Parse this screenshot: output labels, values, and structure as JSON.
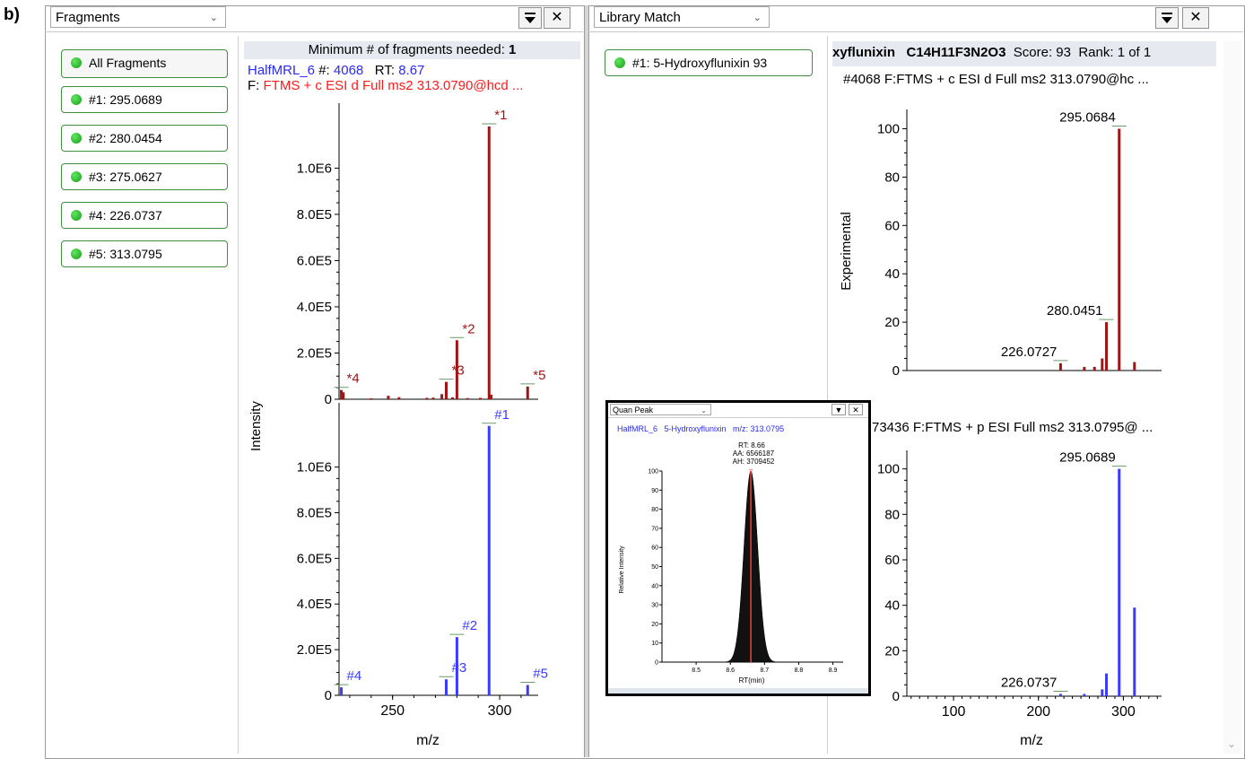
{
  "figure_label": "b)",
  "fragments_panel": {
    "title": "Fragments",
    "items": [
      {
        "label": "All Fragments"
      },
      {
        "label": "#1: 295.0689"
      },
      {
        "label": "#2: 280.0454"
      },
      {
        "label": "#3: 275.0627"
      },
      {
        "label": "#4: 226.0737"
      },
      {
        "label": "#5: 313.0795"
      }
    ]
  },
  "spectrum_panel": {
    "min_fragments_label": "Minimum # of fragments needed:",
    "min_fragments_value": "1",
    "file": "HalfMRL_6",
    "scan_label": "#:",
    "scan_value": "4068",
    "rt_label": "RT:",
    "rt_value": "8.67",
    "filter_label": "F:",
    "filter_value": "FTMS + c ESI d Full ms2 313.0790@hcd ...",
    "y_axis_title": "Intensity",
    "x_axis_title": "m/z"
  },
  "library_panel": {
    "title": "Library Match",
    "match_item": "#1: 5-Hydroxyflunixin  93",
    "header_name": "xyflunixin",
    "header_formula": "C14H11F3N2O3",
    "header_score": "Score: 93",
    "header_rank": "Rank: 1 of 1",
    "top_scan_line": "#4068  F:FTMS + c ESI d Full ms2 313.0790@hc ...",
    "bottom_scan_line": "73436   F:FTMS + p ESI Full ms2 313.0795@ ...",
    "y_axis_title": "Experimental",
    "x_axis_title": "m/z"
  },
  "quan_peak": {
    "title": "Quan Peak",
    "info": "HalfMRL_6   5-Hydroxyflunixin   m/z: 313.0795",
    "rt": "RT: 8.66",
    "aa": "AA: 6566187",
    "ah": "AH: 3709452",
    "y_axis_title": "Relative Intensity",
    "x_axis_title": "RT(min)"
  },
  "colors": {
    "experimental": "#a31515",
    "reference": "#3b3bff",
    "accent_green": "#3f8f3f",
    "header_blue": "#2a2af0",
    "filter_red": "#ff1a1a"
  },
  "chart_data": [
    {
      "type": "bar",
      "name": "fragments-experimental",
      "xlim": [
        225,
        318
      ],
      "ylim": [
        0,
        1250000
      ],
      "yticks": [
        {
          "v": 0,
          "label": "0"
        },
        {
          "v": 200000,
          "label": "2.0E5"
        },
        {
          "v": 400000,
          "label": "4.0E5"
        },
        {
          "v": 600000,
          "label": "6.0E5"
        },
        {
          "v": 800000,
          "label": "8.0E5"
        },
        {
          "v": 1000000,
          "label": "1.0E6"
        }
      ],
      "bars": [
        {
          "x": 226.07,
          "y": 40000
        },
        {
          "x": 227.0,
          "y": 30000
        },
        {
          "x": 240.0,
          "y": 4000
        },
        {
          "x": 248.0,
          "y": 15000
        },
        {
          "x": 253.0,
          "y": 9000
        },
        {
          "x": 266.0,
          "y": 6000
        },
        {
          "x": 269.0,
          "y": 7000
        },
        {
          "x": 273.0,
          "y": 22000
        },
        {
          "x": 275.06,
          "y": 75000
        },
        {
          "x": 278.0,
          "y": 8000
        },
        {
          "x": 280.05,
          "y": 255000
        },
        {
          "x": 285.0,
          "y": 5000
        },
        {
          "x": 291.0,
          "y": 6000
        },
        {
          "x": 295.07,
          "y": 1180000
        },
        {
          "x": 296.0,
          "y": 20000
        },
        {
          "x": 313.08,
          "y": 55000
        }
      ],
      "labels": [
        {
          "x": 295.07,
          "y": 1180000,
          "text": "*1"
        },
        {
          "x": 280.05,
          "y": 255000,
          "text": "*2"
        },
        {
          "x": 275.06,
          "y": 75000,
          "text": "*3"
        },
        {
          "x": 226.07,
          "y": 40000,
          "text": "*4"
        },
        {
          "x": 313.08,
          "y": 55000,
          "text": "*5"
        }
      ]
    },
    {
      "type": "bar",
      "name": "fragments-reference",
      "xlim": [
        225,
        318
      ],
      "ylim": [
        0,
        1250000
      ],
      "xticks": [
        250,
        300
      ],
      "yticks": [
        {
          "v": 0,
          "label": "0"
        },
        {
          "v": 200000,
          "label": "2.0E5"
        },
        {
          "v": 400000,
          "label": "4.0E5"
        },
        {
          "v": 600000,
          "label": "6.0E5"
        },
        {
          "v": 800000,
          "label": "8.0E5"
        },
        {
          "v": 1000000,
          "label": "1.0E6"
        }
      ],
      "bars": [
        {
          "x": 226.07,
          "y": 35000
        },
        {
          "x": 275.06,
          "y": 70000
        },
        {
          "x": 280.05,
          "y": 255000
        },
        {
          "x": 295.07,
          "y": 1180000
        },
        {
          "x": 313.08,
          "y": 45000
        }
      ],
      "labels": [
        {
          "x": 295.07,
          "y": 1180000,
          "text": "#1"
        },
        {
          "x": 280.05,
          "y": 255000,
          "text": "#2"
        },
        {
          "x": 275.06,
          "y": 70000,
          "text": "#3"
        },
        {
          "x": 226.07,
          "y": 35000,
          "text": "#4"
        },
        {
          "x": 313.08,
          "y": 45000,
          "text": "#5"
        }
      ]
    },
    {
      "type": "bar",
      "name": "library-experimental",
      "xlim": [
        45,
        345
      ],
      "ylim": [
        0,
        105
      ],
      "yticks": [
        {
          "v": 0,
          "label": "0"
        },
        {
          "v": 20,
          "label": "20"
        },
        {
          "v": 40,
          "label": "40"
        },
        {
          "v": 60,
          "label": "60"
        },
        {
          "v": 80,
          "label": "80"
        },
        {
          "v": 100,
          "label": "100"
        }
      ],
      "bars": [
        {
          "x": 226.07,
          "y": 3
        },
        {
          "x": 254,
          "y": 1.5
        },
        {
          "x": 266,
          "y": 1.5
        },
        {
          "x": 275.06,
          "y": 5
        },
        {
          "x": 280.05,
          "y": 20
        },
        {
          "x": 295.07,
          "y": 100
        },
        {
          "x": 313.08,
          "y": 3.5
        }
      ],
      "labels": [
        {
          "x": 295.07,
          "y": 100,
          "text": "295.0684"
        },
        {
          "x": 280.05,
          "y": 20,
          "text": "280.0451"
        },
        {
          "x": 226.07,
          "y": 3,
          "text": "226.0727"
        }
      ]
    },
    {
      "type": "bar",
      "name": "library-reference",
      "xlim": [
        45,
        345
      ],
      "ylim": [
        0,
        105
      ],
      "xticks": [
        100,
        200,
        300
      ],
      "yticks": [
        {
          "v": 0,
          "label": "0"
        },
        {
          "v": 20,
          "label": "20"
        },
        {
          "v": 40,
          "label": "40"
        },
        {
          "v": 60,
          "label": "60"
        },
        {
          "v": 80,
          "label": "80"
        },
        {
          "v": 100,
          "label": "100"
        }
      ],
      "bars": [
        {
          "x": 226.07,
          "y": 1
        },
        {
          "x": 254,
          "y": 1
        },
        {
          "x": 275.06,
          "y": 3
        },
        {
          "x": 280.05,
          "y": 10
        },
        {
          "x": 295.07,
          "y": 100
        },
        {
          "x": 313.08,
          "y": 39
        }
      ],
      "labels": [
        {
          "x": 295.07,
          "y": 100,
          "text": "295.0689"
        },
        {
          "x": 226.07,
          "y": 1,
          "text": "226.0737"
        }
      ]
    },
    {
      "type": "area",
      "name": "quan-peak",
      "xlim": [
        8.4,
        8.93
      ],
      "ylim": [
        0,
        100
      ],
      "xticks": [
        8.5,
        8.6,
        8.7,
        8.8,
        8.9
      ],
      "yticks": [
        0,
        10,
        20,
        30,
        40,
        50,
        60,
        70,
        80,
        90,
        100
      ],
      "peak_center": 8.66,
      "peak_height": 100,
      "peak_sigma": 0.02
    }
  ]
}
